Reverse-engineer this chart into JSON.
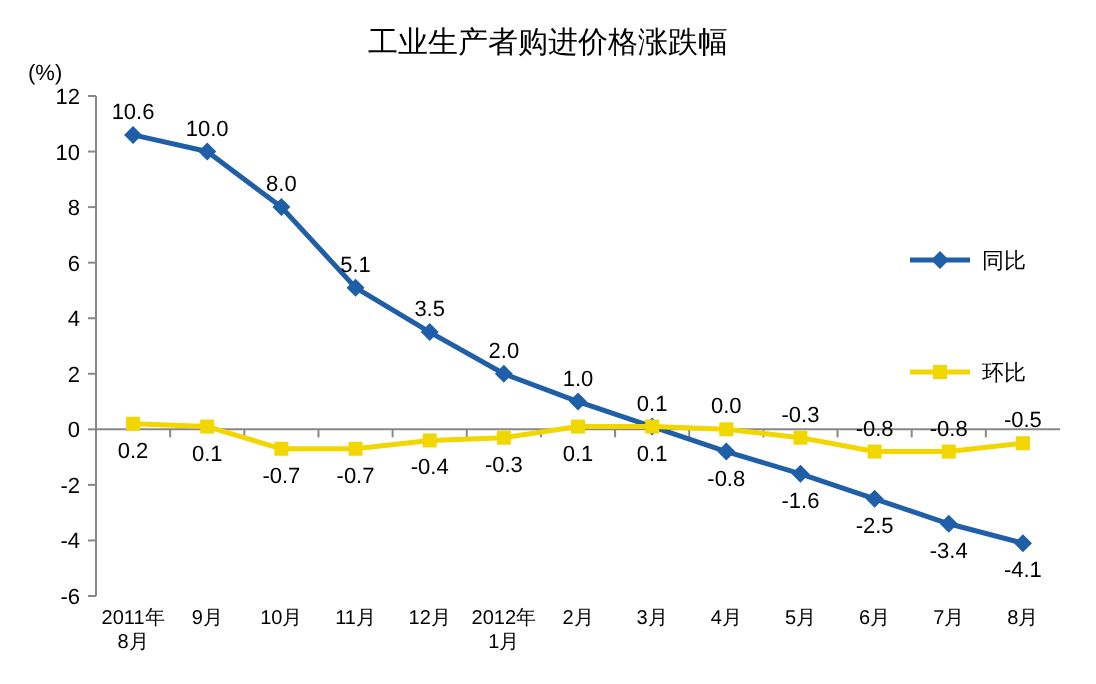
{
  "chart_data": {
    "type": "line",
    "title": "工业生产者购进价格涨跌幅",
    "ylabel": "(%)",
    "categories": [
      "2011年\n8月",
      "9月",
      "10月",
      "11月",
      "12月",
      "2012年\n1月",
      "2月",
      "3月",
      "4月",
      "5月",
      "6月",
      "7月",
      "8月"
    ],
    "series": [
      {
        "name": "同比",
        "color": "#1f5fa8",
        "marker": "diamond",
        "values": [
          10.6,
          10.0,
          8.0,
          5.1,
          3.5,
          2.0,
          1.0,
          0.1,
          -0.8,
          -1.6,
          -2.5,
          -3.4,
          -4.1
        ],
        "value_labels": [
          "10.6",
          "10.0",
          "8.0",
          "5.1",
          "3.5",
          "2.0",
          "1.0",
          "0.1",
          "-0.8",
          "-1.6",
          "-2.5",
          "-3.4",
          "-4.1"
        ]
      },
      {
        "name": "环比",
        "color": "#f2d600",
        "marker": "square",
        "values": [
          0.2,
          0.1,
          -0.7,
          -0.7,
          -0.4,
          -0.3,
          0.1,
          0.1,
          0.0,
          -0.3,
          -0.8,
          -0.8,
          -0.5
        ],
        "value_labels": [
          "0.2",
          "0.1",
          "-0.7",
          "-0.7",
          "-0.4",
          "-0.3",
          "0.1",
          "0.1",
          "0.0",
          "-0.3",
          "-0.8",
          "-0.8",
          "-0.5"
        ]
      }
    ],
    "ylim": [
      -6,
      12
    ],
    "yticks": [
      -6,
      -4,
      -2,
      0,
      2,
      4,
      6,
      8,
      10,
      12
    ],
    "legend": "right",
    "line_style": "solid"
  }
}
